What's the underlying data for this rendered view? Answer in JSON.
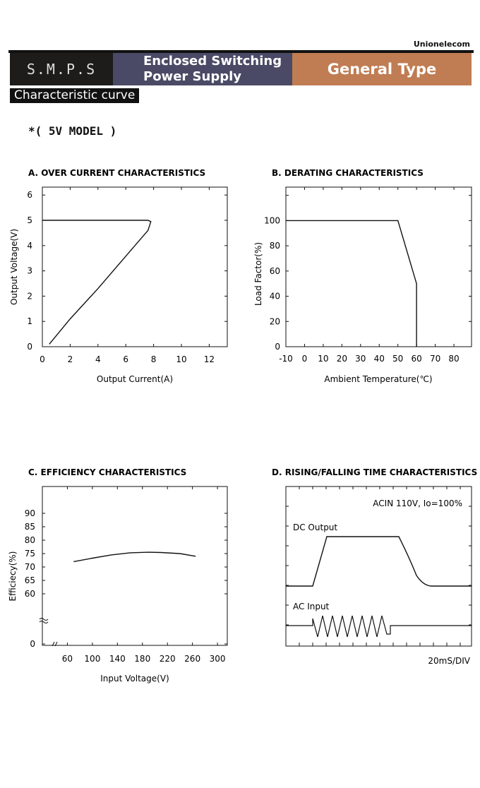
{
  "header": {
    "brand": "Unionelecom",
    "smps": "S.M.P.S",
    "enclosed_line1": "Enclosed Switching",
    "enclosed_line2": "Power Supply",
    "type": "General Type",
    "subtitle": "Characteristic curve",
    "model": "*( 5V MODEL )"
  },
  "colors": {
    "header_dark": "#1e1b1b",
    "header_mid": "#4a4a66",
    "header_accent": "#c07c52"
  },
  "chart_data": [
    {
      "type": "line",
      "title": "A. OVER CURRENT CHARACTERISTICS",
      "xlabel": "Output Current(A)",
      "ylabel": "Output Voltage(V)",
      "xlim": [
        0,
        13.3
      ],
      "ylim": [
        0,
        6.6
      ],
      "xticks": [
        "0",
        "2",
        "4",
        "6",
        "8",
        "10",
        "12"
      ],
      "yticks": [
        "0",
        "1",
        "2",
        "3",
        "4",
        "5",
        "6"
      ],
      "x": [
        0,
        7.0,
        7.6,
        7.8,
        7.6,
        6.5,
        4.0,
        2.0,
        0.5
      ],
      "y": [
        5,
        5,
        5,
        4.95,
        4.6,
        3.9,
        2.3,
        1.1,
        0.1
      ]
    },
    {
      "type": "line",
      "title": "B. DERATING CHARACTERISTICS",
      "xlabel": "Ambient Temperature(℃)",
      "ylabel": "Load Factor(%)",
      "xlim": [
        -10,
        90
      ],
      "ylim": [
        0,
        125
      ],
      "xticks": [
        "-10",
        "0",
        "10",
        "20",
        "30",
        "40",
        "50",
        "60",
        "70",
        "80"
      ],
      "yticks": [
        "0",
        "20",
        "40",
        "60",
        "80",
        "100"
      ],
      "x": [
        -10,
        50,
        60,
        60
      ],
      "y": [
        100,
        100,
        50,
        0
      ]
    },
    {
      "type": "line",
      "title": "C. EFFICIENCY CHARACTERISTICS",
      "xlabel": "Input Voltage(V)",
      "ylabel": "Efficiecy(%)",
      "xlim": [
        20,
        320
      ],
      "xticks": [
        "60",
        "100",
        "140",
        "180",
        "220",
        "260",
        "300"
      ],
      "yticks": [
        "0",
        "60",
        "65",
        "70",
        "75",
        "80",
        "85",
        "90"
      ],
      "x": [
        70,
        100,
        130,
        160,
        190,
        210,
        240,
        265
      ],
      "y": [
        72,
        73.3,
        74.5,
        75.3,
        75.5,
        75.4,
        75,
        74
      ]
    },
    {
      "type": "line",
      "title": "D. RISING/FALLING TIME CHARACTERISTICS",
      "condition": "ACIN 110V, Io=100%",
      "time_scale": "20mS/DIV",
      "series": [
        {
          "name": "DC Output"
        },
        {
          "name": "AC Input"
        }
      ]
    }
  ]
}
